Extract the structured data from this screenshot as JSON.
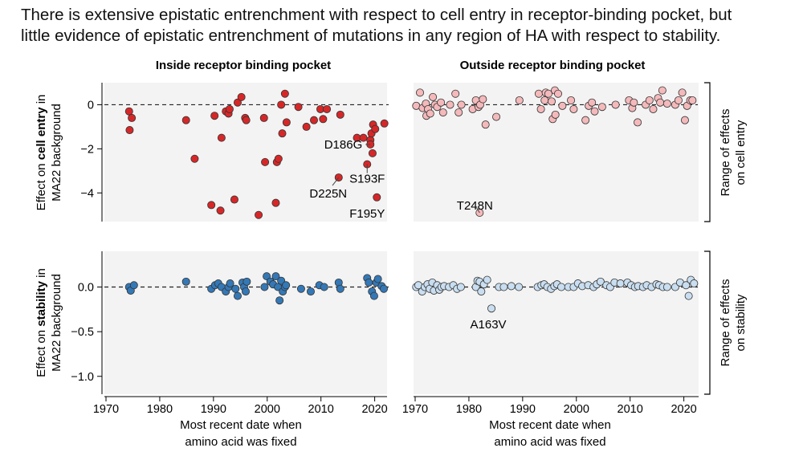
{
  "headline": {
    "line1": "There is extensive epistatic entrenchment with respect to cell entry in receptor-binding pocket, but",
    "line2": "little evidence of epistatic entrenchment of mutations in any region of HA with respect to stability."
  },
  "panel_titles": {
    "left": "Inside receptor binding pocket",
    "right": "Outside receptor binding pocket"
  },
  "ylabels": {
    "top_pre": "Effect on ",
    "top_bold": "cell entry",
    "top_post": " in",
    "top_line2": "MA22 background",
    "bottom_pre": "Effect on ",
    "bottom_bold": "stability",
    "bottom_post": " in",
    "bottom_line2": "MA22 background"
  },
  "side_labels": {
    "top_line1": "Range of effects",
    "top_line2": "on cell entry",
    "bottom_line1": "Range of effects",
    "bottom_line2": "on stability"
  },
  "xlabel": {
    "line1": "Most recent date when",
    "line2": "amino acid was fixed"
  },
  "colors": {
    "inside_entry": "#d62728",
    "outside_entry": "#f4b9bb",
    "inside_stability": "#3478b6",
    "outside_stability": "#c9def0",
    "panel_bg": "#f3f3f3"
  },
  "chart_data": [
    {
      "type": "scatter",
      "panel": "inside_entry",
      "title": "Inside receptor binding pocket",
      "ylabel": "Effect on cell entry in MA22 background",
      "xlim": [
        1970,
        2022
      ],
      "ylim": [
        -5.3,
        1.0
      ],
      "xticks": [
        1970,
        1980,
        1990,
        2000,
        2010,
        2020
      ],
      "yticks": [
        0,
        -2,
        -4
      ],
      "x": [
        1974.3,
        1974.4,
        1974.8,
        1984.9,
        1986.5,
        1989.6,
        1990.2,
        1991.3,
        1991.5,
        1992.3,
        1992.8,
        1993.0,
        1993.9,
        1994.5,
        1995.2,
        1995.9,
        1996.1,
        1998.4,
        1999.4,
        1999.6,
        2001.6,
        2001.8,
        2002.1,
        2002.6,
        2002.8,
        2003.3,
        2003.6,
        2005.8,
        2007.3,
        2008.7,
        2009.9,
        2010.4,
        2011.1,
        2013.3,
        2013.6,
        2016.7,
        2017.9,
        2018.6,
        2019.2,
        2019.4,
        2019.6,
        2019.7,
        2020.1,
        2020.4,
        2021.8,
        2019.2
      ],
      "y": [
        -0.3,
        -1.15,
        -0.6,
        -0.7,
        -2.45,
        -4.55,
        -0.5,
        -4.8,
        -1.5,
        -0.3,
        -0.4,
        -0.2,
        -4.3,
        0.1,
        0.35,
        -0.6,
        -0.7,
        -5.0,
        -0.6,
        -2.6,
        -4.45,
        -2.6,
        -2.45,
        0.0,
        -1.3,
        0.5,
        -0.8,
        -0.1,
        -1.0,
        -0.7,
        -0.2,
        -0.65,
        -0.2,
        -3.3,
        -0.45,
        -1.5,
        -1.5,
        -2.7,
        -1.6,
        -1.3,
        -2.2,
        -0.9,
        -1.1,
        -4.2,
        -0.85,
        -1.8
      ],
      "annotations": [
        {
          "text": "D186G",
          "x": 2019.2,
          "y": -1.8
        },
        {
          "text": "S193F",
          "x": 2018.6,
          "y": -2.7
        },
        {
          "text": "D225N",
          "x": 2013.3,
          "y": -3.3
        },
        {
          "text": "F195Y",
          "x": 2020.4,
          "y": -4.2
        }
      ]
    },
    {
      "type": "scatter",
      "panel": "outside_entry",
      "title": "Outside receptor binding pocket",
      "xlim": [
        1970,
        2022
      ],
      "ylim": [
        -5.3,
        1.0
      ],
      "xticks": [
        1970,
        1980,
        1990,
        2000,
        2010,
        2020
      ],
      "x": [
        1970.2,
        1970.9,
        1971.4,
        1972.0,
        1972.1,
        1972.4,
        1972.8,
        1973.3,
        1973.7,
        1974.1,
        1974.8,
        1975.2,
        1976.5,
        1977.5,
        1978.1,
        1978.6,
        1980.7,
        1981.3,
        1981.8,
        1982.1,
        1982.6,
        1983.1,
        1985.1,
        1989.4,
        1993.0,
        1993.4,
        1994.1,
        1994.3,
        1994.8,
        1995.4,
        1995.6,
        1996.0,
        1996.1,
        1996.6,
        1997.4,
        1999.0,
        1999.5,
        2001.7,
        2002.3,
        2002.9,
        2003.4,
        2004.8,
        2007.3,
        2009.8,
        2010.4,
        2010.7,
        2011.4,
        2012.9,
        2013.6,
        2014.3,
        2015.2,
        2015.6,
        2016.0,
        2016.9,
        2018.4,
        2019.0,
        2019.7,
        2020.2,
        2020.6,
        2021.2,
        2021.6,
        1982.0
      ],
      "y": [
        -0.05,
        0.55,
        -0.15,
        0.05,
        -0.5,
        -0.2,
        -0.4,
        0.35,
        0.0,
        -0.1,
        0.1,
        -0.35,
        0.0,
        0.5,
        -0.35,
        0.0,
        -0.2,
        0.2,
        -0.1,
        0.0,
        0.25,
        -0.9,
        -0.55,
        0.2,
        0.5,
        -0.2,
        0.2,
        0.55,
        0.5,
        0.15,
        -0.65,
        0.65,
        -0.45,
        0.5,
        -0.05,
        0.2,
        -0.2,
        -0.7,
        -0.05,
        0.1,
        -0.3,
        -0.1,
        0.0,
        0.2,
        -0.15,
        0.1,
        -0.8,
        0.0,
        0.2,
        -0.2,
        0.3,
        0.1,
        0.65,
        0.05,
        0.0,
        0.2,
        0.55,
        -0.7,
        -0.05,
        0.2,
        0.2,
        -4.9
      ],
      "annotations": [
        {
          "text": "T248N",
          "x": 1982.0,
          "y": -4.9
        }
      ]
    },
    {
      "type": "scatter",
      "panel": "inside_stability",
      "ylabel": "Effect on stability in MA22 background",
      "xlabel": "Most recent date when amino acid was fixed",
      "xlim": [
        1970,
        2022
      ],
      "ylim": [
        -1.2,
        0.4
      ],
      "xticks": [
        1970,
        1980,
        1990,
        2000,
        2010,
        2020
      ],
      "yticks": [
        0.0,
        -0.5,
        -1.0
      ],
      "x": [
        1974.3,
        1974.6,
        1975.2,
        1984.9,
        1989.6,
        1990.3,
        1990.9,
        1991.5,
        1992.3,
        1992.8,
        1993.1,
        1994.1,
        1994.5,
        1995.4,
        1995.7,
        1996.0,
        1996.2,
        1999.5,
        1999.9,
        2000.6,
        2001.1,
        2001.6,
        2002.0,
        2002.3,
        2002.6,
        2002.9,
        2003.3,
        2003.5,
        2006.3,
        2008.1,
        2009.7,
        2010.6,
        2013.3,
        2013.6,
        2018.6,
        2018.9,
        2019.5,
        2019.9,
        2020.3,
        2020.6,
        2021.3,
        2021.7
      ],
      "y": [
        0.0,
        -0.04,
        0.02,
        0.06,
        -0.02,
        0.02,
        0.04,
        0.0,
        -0.05,
        0.0,
        0.04,
        -0.02,
        -0.1,
        0.05,
        0.0,
        -0.05,
        0.06,
        0.0,
        0.12,
        0.06,
        0.03,
        0.12,
        0.0,
        -0.15,
        0.07,
        -0.05,
        0.0,
        0.02,
        -0.02,
        -0.05,
        0.02,
        0.0,
        0.05,
        -0.02,
        0.1,
        0.05,
        -0.05,
        -0.1,
        0.05,
        0.09,
        0.01,
        -0.02
      ]
    },
    {
      "type": "scatter",
      "panel": "outside_stability",
      "xlabel": "Most recent date when amino acid was fixed",
      "xlim": [
        1970,
        2022
      ],
      "ylim": [
        -1.2,
        0.4
      ],
      "xticks": [
        1970,
        1980,
        1990,
        2000,
        2010,
        2020
      ],
      "x": [
        1970.2,
        1970.6,
        1971.3,
        1971.8,
        1972.3,
        1972.7,
        1973.2,
        1973.5,
        1974.1,
        1974.5,
        1974.9,
        1975.4,
        1976.3,
        1977.1,
        1977.8,
        1978.5,
        1981.3,
        1981.6,
        1982.0,
        1982.3,
        1982.8,
        1983.4,
        1985.6,
        1986.5,
        1987.9,
        1989.3,
        1992.8,
        1993.5,
        1994.0,
        1994.6,
        1995.3,
        1995.9,
        1996.4,
        1997.2,
        1998.5,
        1999.5,
        2000.3,
        2001.1,
        2002.2,
        2003.2,
        2003.8,
        2004.5,
        2005.6,
        2006.3,
        2007.1,
        2008.2,
        2009.5,
        2010.2,
        2010.9,
        2011.5,
        2012.4,
        2013.1,
        2014.0,
        2014.9,
        2015.4,
        2016.1,
        2016.9,
        2018.4,
        2019.3,
        2020.4,
        2020.9,
        2021.3,
        2021.9,
        1984.2
      ],
      "y": [
        0.0,
        0.02,
        -0.05,
        0.0,
        0.03,
        -0.02,
        0.05,
        -0.04,
        0.02,
        -0.03,
        0.0,
        0.01,
        0.0,
        0.02,
        -0.02,
        0.0,
        0.0,
        0.07,
        0.06,
        -0.05,
        0.03,
        0.08,
        0.0,
        0.0,
        0.01,
        0.0,
        0.0,
        0.02,
        0.03,
        0.0,
        -0.02,
        0.01,
        0.03,
        0.0,
        0.0,
        0.0,
        0.04,
        0.01,
        0.02,
        0.0,
        0.03,
        0.06,
        0.02,
        0.0,
        0.05,
        0.04,
        0.05,
        0.02,
        0.0,
        0.01,
        0.0,
        0.02,
        0.0,
        0.03,
        0.02,
        0.0,
        0.0,
        0.0,
        0.05,
        0.02,
        -0.1,
        0.08,
        0.04,
        -0.24
      ],
      "annotations": [
        {
          "text": "A163V",
          "x": 1984.2,
          "y": -0.24
        }
      ]
    }
  ]
}
